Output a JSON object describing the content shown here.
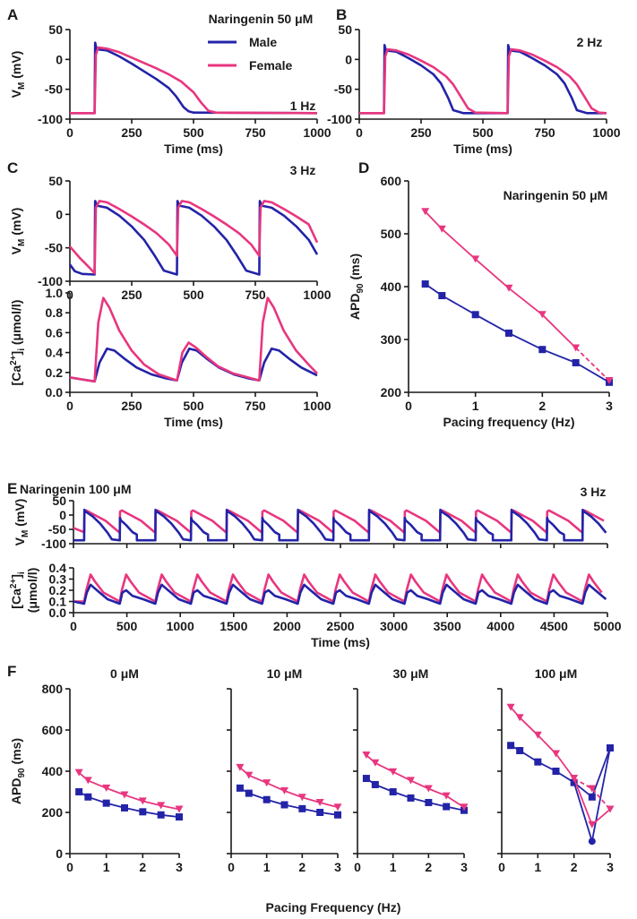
{
  "colors": {
    "male": "#2323a8",
    "female": "#e8367f"
  },
  "legend": {
    "male": "Male",
    "female": "Female"
  },
  "chart_data": [
    {
      "id": "A",
      "panel_label": "A",
      "type": "line",
      "title": "Naringenin 50 μM",
      "annotation": "1 Hz",
      "xlabel": "Time (ms)",
      "ylabel": "V_M (mV)",
      "xlim": [
        0,
        1000
      ],
      "ylim": [
        -100,
        50
      ],
      "xticks": [
        "0",
        "250",
        "500",
        "750",
        "1000"
      ],
      "yticks": [
        "-100",
        "-50",
        "0",
        "50"
      ],
      "series": [
        {
          "name": "Male",
          "x": [
            0,
            100,
            102,
            108,
            150,
            200,
            250,
            300,
            350,
            400,
            430,
            460,
            480,
            500,
            1000
          ],
          "y": [
            -90,
            -90,
            28,
            17,
            15,
            5,
            -7,
            -20,
            -33,
            -48,
            -62,
            -80,
            -87,
            -89,
            -90
          ]
        },
        {
          "name": "Female",
          "x": [
            0,
            100,
            105,
            115,
            150,
            200,
            250,
            300,
            350,
            400,
            450,
            500,
            530,
            560,
            590,
            1000
          ],
          "y": [
            -90,
            -90,
            8,
            20,
            18,
            12,
            3,
            -6,
            -15,
            -25,
            -37,
            -55,
            -72,
            -86,
            -89,
            -90
          ]
        }
      ]
    },
    {
      "id": "B",
      "panel_label": "B",
      "type": "line",
      "annotation": "2 Hz",
      "xlabel": "Time (ms)",
      "ylabel": "",
      "xlim": [
        0,
        1000
      ],
      "ylim": [
        -100,
        50
      ],
      "xticks": [
        "0",
        "250",
        "500",
        "750",
        "1000"
      ],
      "yticks": [
        "-100",
        "-50",
        "0",
        "50"
      ],
      "series": [
        {
          "name": "Male",
          "x": [
            0,
            100,
            102,
            108,
            150,
            200,
            250,
            300,
            330,
            360,
            380,
            420,
            600,
            602,
            608,
            650,
            700,
            750,
            800,
            830,
            860,
            880,
            920,
            1000
          ],
          "y": [
            -90,
            -90,
            24,
            15,
            13,
            2,
            -10,
            -25,
            -40,
            -65,
            -85,
            -90,
            -90,
            24,
            15,
            13,
            2,
            -10,
            -25,
            -40,
            -65,
            -85,
            -90,
            -90
          ]
        },
        {
          "name": "Female",
          "x": [
            0,
            100,
            105,
            115,
            150,
            200,
            250,
            300,
            350,
            380,
            410,
            440,
            470,
            600,
            605,
            615,
            650,
            700,
            750,
            800,
            850,
            880,
            910,
            940,
            970,
            1000
          ],
          "y": [
            -90,
            -90,
            5,
            17,
            15,
            8,
            -2,
            -13,
            -28,
            -42,
            -62,
            -82,
            -89,
            -90,
            5,
            17,
            15,
            8,
            -2,
            -13,
            -28,
            -42,
            -62,
            -82,
            -89,
            -90
          ]
        }
      ]
    },
    {
      "id": "C_vm",
      "panel_label": "C",
      "type": "line",
      "annotation": "3 Hz",
      "xlabel": "",
      "ylabel": "V_M (mV)",
      "xlim": [
        0,
        1000
      ],
      "ylim": [
        -100,
        50
      ],
      "xticks": [
        "0",
        "250",
        "500",
        "750",
        "1000"
      ],
      "yticks": [
        "-100",
        "-50",
        "0",
        "50"
      ],
      "series": [
        {
          "name": "Male",
          "x": [
            0,
            20,
            50,
            100,
            102,
            110,
            150,
            200,
            250,
            300,
            340,
            380,
            433,
            435,
            443,
            483,
            533,
            583,
            633,
            673,
            713,
            766,
            768,
            776,
            816,
            866,
            916,
            966,
            1000
          ],
          "y": [
            -75,
            -85,
            -89,
            -90,
            20,
            13,
            10,
            -2,
            -18,
            -38,
            -60,
            -84,
            -90,
            20,
            13,
            10,
            -2,
            -18,
            -38,
            -60,
            -84,
            -90,
            20,
            13,
            10,
            -2,
            -18,
            -38,
            -60
          ]
        },
        {
          "name": "Female",
          "x": [
            0,
            40,
            80,
            100,
            105,
            120,
            150,
            200,
            250,
            300,
            350,
            400,
            433,
            438,
            453,
            483,
            533,
            583,
            633,
            683,
            733,
            766,
            771,
            786,
            816,
            866,
            916,
            966,
            1000
          ],
          "y": [
            -48,
            -65,
            -80,
            -88,
            10,
            20,
            18,
            8,
            -3,
            -15,
            -28,
            -45,
            -62,
            10,
            20,
            18,
            8,
            -3,
            -15,
            -28,
            -45,
            -62,
            10,
            20,
            18,
            8,
            -3,
            -15,
            -42
          ]
        }
      ]
    },
    {
      "id": "C_ca",
      "panel_label": "",
      "type": "line",
      "xlabel": "Time (ms)",
      "ylabel": "[Ca2+]i (μmol/l)",
      "xlim": [
        0,
        1000
      ],
      "ylim": [
        0,
        1.0
      ],
      "xticks": [
        "0",
        "250",
        "500",
        "750",
        "1000"
      ],
      "yticks": [
        "0.0",
        "0.2",
        "0.4",
        "0.6",
        "0.8",
        "1.0"
      ],
      "series": [
        {
          "name": "Male",
          "x": [
            0,
            50,
            100,
            120,
            150,
            180,
            220,
            270,
            330,
            390,
            433,
            453,
            483,
            513,
            553,
            603,
            663,
            723,
            766,
            786,
            816,
            846,
            886,
            936,
            1000
          ],
          "y": [
            0.15,
            0.13,
            0.11,
            0.3,
            0.44,
            0.42,
            0.34,
            0.25,
            0.18,
            0.14,
            0.12,
            0.3,
            0.44,
            0.42,
            0.34,
            0.25,
            0.18,
            0.14,
            0.12,
            0.3,
            0.44,
            0.42,
            0.34,
            0.25,
            0.17
          ]
        },
        {
          "name": "Female",
          "x": [
            0,
            50,
            100,
            115,
            135,
            160,
            200,
            250,
            300,
            360,
            433,
            455,
            480,
            510,
            550,
            600,
            660,
            766,
            780,
            800,
            825,
            865,
            915,
            965,
            1000
          ],
          "y": [
            0.15,
            0.13,
            0.11,
            0.7,
            0.95,
            0.85,
            0.62,
            0.42,
            0.28,
            0.18,
            0.12,
            0.4,
            0.5,
            0.45,
            0.36,
            0.26,
            0.19,
            0.12,
            0.7,
            0.95,
            0.85,
            0.62,
            0.42,
            0.28,
            0.19
          ]
        }
      ]
    },
    {
      "id": "D",
      "panel_label": "D",
      "type": "line",
      "title": "Naringenin 50 μM",
      "xlabel": "Pacing frequency (Hz)",
      "ylabel": "APD90 (ms)",
      "xlim": [
        0,
        3
      ],
      "ylim": [
        200,
        600
      ],
      "xticks": [
        "0",
        "1",
        "2",
        "3"
      ],
      "yticks": [
        "200",
        "300",
        "400",
        "500",
        "600"
      ],
      "series": [
        {
          "name": "Male",
          "x": [
            0.25,
            0.5,
            1,
            1.5,
            2,
            2.5,
            3
          ],
          "y": [
            405,
            383,
            347,
            312,
            281,
            256,
            219
          ],
          "marker": "square"
        },
        {
          "name": "Female",
          "x": [
            0.25,
            0.5,
            1,
            1.5,
            2,
            2.5,
            3
          ],
          "y": [
            542,
            509,
            452,
            397,
            347,
            284,
            222
          ],
          "marker": "tri",
          "last_segment_dashed": true
        }
      ]
    },
    {
      "id": "E_vm",
      "panel_label": "E",
      "type": "line",
      "title": "Naringenin 100 μM",
      "annotation": "3 Hz",
      "xlabel": "",
      "ylabel": "V_M (mV)",
      "xlim": [
        0,
        5000
      ],
      "ylim": [
        -100,
        50
      ],
      "xticks": [],
      "yticks": [
        "-100",
        "-50",
        "0",
        "50"
      ],
      "generator": {
        "kind": "alternans_ap",
        "period": 333.33,
        "start": 100,
        "beats": 15
      }
    },
    {
      "id": "E_ca",
      "panel_label": "",
      "type": "line",
      "xlabel": "Time (ms)",
      "ylabel": "[Ca2+]i (μmol/l)",
      "xlim": [
        0,
        5000
      ],
      "ylim": [
        0,
        0.4
      ],
      "xticks": [
        "0",
        "500",
        "1000",
        "1500",
        "2000",
        "2500",
        "3000",
        "3500",
        "4000",
        "4500",
        "5000"
      ],
      "yticks": [
        "0.0",
        "0.1",
        "0.2",
        "0.3",
        "0.4"
      ],
      "generator": {
        "kind": "alternans_ca",
        "period": 333.33,
        "start": 100,
        "beats": 15
      }
    },
    {
      "id": "F_0",
      "panel_label": "F",
      "type": "line",
      "title": "0 μM",
      "xlabel": "",
      "ylabel": "APD90 (ms)",
      "xlim": [
        0,
        3
      ],
      "ylim": [
        0,
        800
      ],
      "xticks": [
        "0",
        "1",
        "2",
        "3"
      ],
      "yticks": [
        "0",
        "200",
        "400",
        "600",
        "800"
      ],
      "series": [
        {
          "name": "Male",
          "x": [
            0.25,
            0.5,
            1,
            1.5,
            2,
            2.5,
            3
          ],
          "y": [
            300,
            275,
            245,
            222,
            203,
            188,
            178
          ],
          "marker": "square"
        },
        {
          "name": "Female",
          "x": [
            0.25,
            0.5,
            1,
            1.5,
            2,
            2.5,
            3
          ],
          "y": [
            393,
            355,
            318,
            285,
            255,
            233,
            215
          ],
          "marker": "tri"
        }
      ]
    },
    {
      "id": "F_10",
      "panel_label": "",
      "type": "line",
      "title": "10 μM",
      "xlabel": "",
      "ylabel": "",
      "xlim": [
        0,
        3
      ],
      "ylim": [
        0,
        800
      ],
      "xticks": [
        "0",
        "1",
        "2",
        "3"
      ],
      "yticks": [],
      "series": [
        {
          "name": "Male",
          "x": [
            0.25,
            0.5,
            1,
            1.5,
            2,
            2.5,
            3
          ],
          "y": [
            318,
            293,
            262,
            237,
            218,
            200,
            188
          ],
          "marker": "square"
        },
        {
          "name": "Female",
          "x": [
            0.25,
            0.5,
            1,
            1.5,
            2,
            2.5,
            3
          ],
          "y": [
            418,
            380,
            343,
            305,
            273,
            248,
            225
          ],
          "marker": "tri"
        }
      ]
    },
    {
      "id": "F_30",
      "panel_label": "",
      "type": "line",
      "title": "30 μM",
      "xlabel": "",
      "ylabel": "",
      "xlim": [
        0,
        3
      ],
      "ylim": [
        0,
        800
      ],
      "xticks": [
        "0",
        "1",
        "2",
        "3"
      ],
      "yticks": [],
      "series": [
        {
          "name": "Male",
          "x": [
            0.25,
            0.5,
            1,
            1.5,
            2,
            2.5,
            3
          ],
          "y": [
            365,
            335,
            300,
            270,
            248,
            228,
            210
          ],
          "marker": "square"
        },
        {
          "name": "Female",
          "x": [
            0.25,
            0.5,
            1,
            1.5,
            2,
            2.5,
            3
          ],
          "y": [
            478,
            440,
            397,
            355,
            315,
            280,
            225
          ],
          "marker": "tri"
        }
      ]
    },
    {
      "id": "F_100",
      "panel_label": "",
      "type": "line",
      "title": "100 μM",
      "xlabel": "",
      "ylabel": "",
      "xlim": [
        0,
        3
      ],
      "ylim": [
        0,
        800
      ],
      "xticks": [
        "0",
        "1",
        "2",
        "3"
      ],
      "yticks": [],
      "series": [
        {
          "name": "Male",
          "x": [
            0.25,
            0.5,
            1,
            1.5,
            2,
            2.5,
            3
          ],
          "y": [
            525,
            500,
            445,
            400,
            345,
            60,
            513
          ],
          "alt_x": [
            2,
            2.5,
            3
          ],
          "alt_y": [
            345,
            275,
            513
          ],
          "marker": "square",
          "solid_to_alt": true
        },
        {
          "name": "Female",
          "x": [
            0.25,
            0.5,
            1,
            1.5,
            2,
            2.5,
            3
          ],
          "y": [
            710,
            660,
            575,
            485,
            365,
            140,
            215
          ],
          "alt_x": [
            2,
            2.5,
            3
          ],
          "alt_y": [
            365,
            315,
            215
          ],
          "marker": "tri",
          "dashed_alt": true
        }
      ]
    }
  ],
  "shared_labels": {
    "fig_xlabel": "Pacing Frequency (Hz)"
  }
}
